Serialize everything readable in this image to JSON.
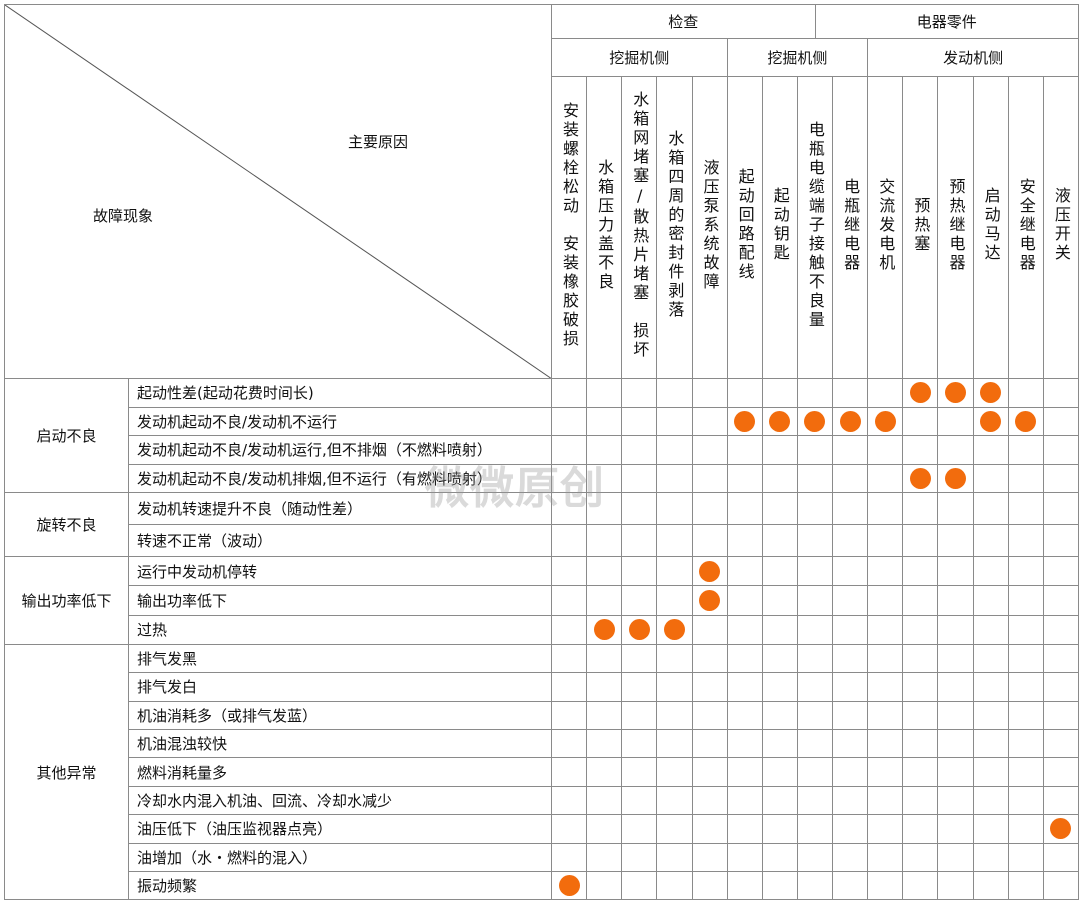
{
  "header": {
    "main_cause_label": "主要原因",
    "symptom_label": "故障现象",
    "top_groups": [
      "检查",
      "电器零件"
    ],
    "sub_groups": [
      "挖掘机侧",
      "挖掘机侧",
      "发动机侧"
    ],
    "columns": [
      "安装螺栓松动　安装橡胶破损",
      "水箱压力盖不良",
      "水箱网堵塞/散热片堵塞　损坏",
      "水箱四周的密封件剥落",
      "液压泵系统故障",
      "起动回路配线",
      "起动钥匙",
      "电瓶电缆端子接触不良量",
      "电瓶继电器",
      "交流发电机",
      "预热塞",
      "预热继电器",
      "启动马达",
      "安全继电器",
      "液压开关"
    ]
  },
  "marker_color": "#f26c0d",
  "groups": [
    {
      "label": "启动不良",
      "rows": [
        {
          "symptom": "起动性差(起动花费时间长)",
          "marks": [
            11,
            12,
            13
          ]
        },
        {
          "symptom": "发动机起动不良/发动机不运行",
          "marks": [
            6,
            7,
            8,
            9,
            10,
            13,
            14
          ]
        },
        {
          "symptom": "发动机起动不良/发动机运行,但不排烟（不燃料喷射）",
          "marks": []
        },
        {
          "symptom": "发动机起动不良/发动机排烟,但不运行（有燃料喷射）",
          "marks": [
            11,
            12
          ]
        }
      ]
    },
    {
      "label": "旋转不良",
      "rows": [
        {
          "symptom": "发动机转速提升不良（随动性差）",
          "marks": []
        },
        {
          "symptom": "转速不正常（波动）",
          "marks": []
        }
      ]
    },
    {
      "label": "输出功率低下",
      "rows": [
        {
          "symptom": "运行中发动机停转",
          "marks": [
            5
          ]
        },
        {
          "symptom": "输出功率低下",
          "marks": [
            5
          ]
        },
        {
          "symptom": "过热",
          "marks": [
            2,
            3,
            4
          ]
        }
      ]
    },
    {
      "label": "其他异常",
      "rows": [
        {
          "symptom": "排气发黑",
          "marks": []
        },
        {
          "symptom": "排气发白",
          "marks": []
        },
        {
          "symptom": "机油消耗多（或排气发蓝）",
          "marks": []
        },
        {
          "symptom": "机油混浊较快",
          "marks": []
        },
        {
          "symptom": "燃料消耗量多",
          "marks": []
        },
        {
          "symptom": "冷却水内混入机油、回流、冷却水减少",
          "marks": []
        },
        {
          "symptom": "油压低下（油压监视器点亮）",
          "marks": [
            15
          ]
        },
        {
          "symptom": "油增加（水・燃料的混入）",
          "marks": []
        },
        {
          "symptom": "振动频繁",
          "marks": [
            1
          ]
        }
      ]
    }
  ],
  "watermark": "微微原创"
}
